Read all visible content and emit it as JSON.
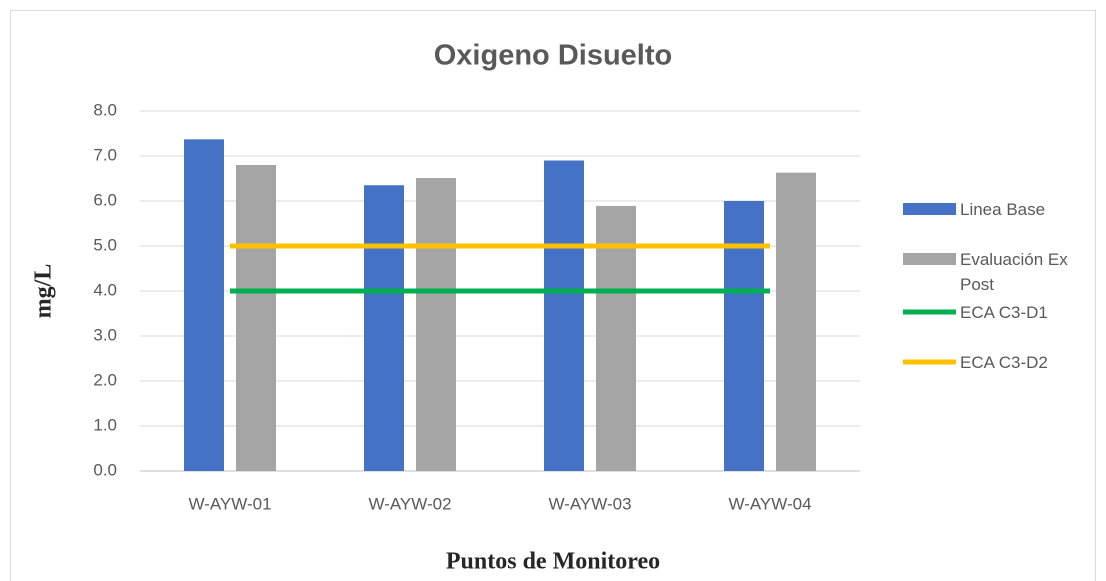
{
  "chart_data": {
    "type": "bar",
    "title": "Oxigeno Disuelto",
    "x_label": "Puntos de Monitoreo",
    "y_label": "mg/L",
    "categories": [
      "W-AYW-01",
      "W-AYW-02",
      "W-AYW-03",
      "W-AYW-04"
    ],
    "series": [
      {
        "name": "Linea Base",
        "type": "bar",
        "color": "#4472c4",
        "values": [
          7.37,
          6.35,
          6.9,
          6.0
        ]
      },
      {
        "name": "Evaluación Ex Post",
        "type": "bar",
        "color": "#a5a5a5",
        "values": [
          6.8,
          6.51,
          5.89,
          6.63
        ]
      },
      {
        "name": "ECA C3-D1",
        "type": "line",
        "color": "#00b050",
        "values": [
          4,
          4,
          4,
          4
        ]
      },
      {
        "name": "ECA C3-D2",
        "type": "line",
        "color": "#ffc000",
        "values": [
          5,
          5,
          5,
          5
        ]
      }
    ],
    "ylim": [
      0,
      8
    ],
    "yticks": [
      {
        "value": 0,
        "label": "0.0"
      },
      {
        "value": 1,
        "label": "1.0"
      },
      {
        "value": 2,
        "label": "2.0"
      },
      {
        "value": 3,
        "label": "3.0"
      },
      {
        "value": 4,
        "label": "4.0"
      },
      {
        "value": 5,
        "label": "5.0"
      },
      {
        "value": 6,
        "label": "6.0"
      },
      {
        "value": 7,
        "label": "7.0"
      },
      {
        "value": 8,
        "label": "8.0"
      }
    ],
    "grid": true,
    "legend": "right"
  }
}
